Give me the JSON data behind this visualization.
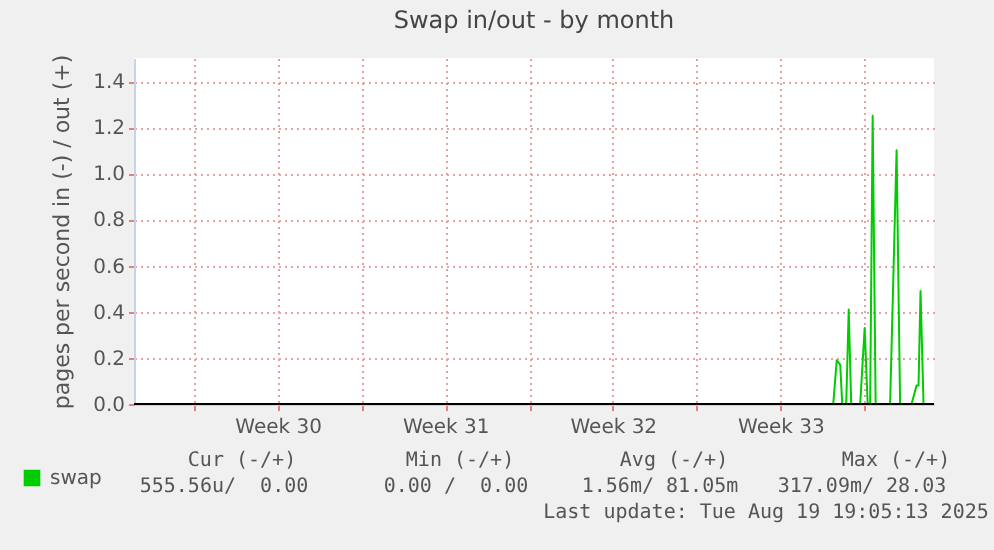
{
  "chart_data": {
    "type": "line",
    "title": "Swap in/out - by month",
    "ylabel": "pages per second in (-) / out (+)",
    "xlim": [
      "2025-07-18T12:00",
      "2025-08-20T22:00"
    ],
    "xticks": [
      {
        "value": "2025-07-21T00:00",
        "label": null
      },
      {
        "value": "2025-07-24T12:00",
        "label": "Week 30"
      },
      {
        "value": "2025-07-28T00:00",
        "label": null
      },
      {
        "value": "2025-07-31T12:00",
        "label": "Week 31"
      },
      {
        "value": "2025-08-04T00:00",
        "label": null
      },
      {
        "value": "2025-08-07T12:00",
        "label": "Week 32"
      },
      {
        "value": "2025-08-11T00:00",
        "label": null
      },
      {
        "value": "2025-08-14T12:00",
        "label": "Week 33"
      },
      {
        "value": "2025-08-18T00:00",
        "label": null
      }
    ],
    "ylim": [
      0,
      1.5
    ],
    "yticks": [
      {
        "value": 0,
        "label": "0.0"
      },
      {
        "value": 0.2,
        "label": "0.2"
      },
      {
        "value": 0.4,
        "label": "0.4"
      },
      {
        "value": 0.6,
        "label": "0.6"
      },
      {
        "value": 0.8,
        "label": "0.8"
      },
      {
        "value": 1,
        "label": "1.0"
      },
      {
        "value": 1.2,
        "label": "1.2"
      },
      {
        "value": 1.4,
        "label": "1.4"
      }
    ],
    "grid": true,
    "legend": "bottom left",
    "x": [
      "2025-08-16T17:00",
      "2025-08-16T20:30",
      "2025-08-17T00:00",
      "2025-08-17T02:00",
      "2025-08-17T06:00",
      "2025-08-17T08:30",
      "2025-08-17T11:00",
      "2025-08-17T20:00",
      "2025-08-18T00:30",
      "2025-08-18T03:30",
      "2025-08-18T06:00",
      "2025-08-18T08:30",
      "2025-08-18T11:30",
      "2025-08-19T02:00",
      "2025-08-19T08:30",
      "2025-08-19T12:00",
      "2025-08-19T23:30",
      "2025-08-20T04:30",
      "2025-08-20T06:30",
      "2025-08-20T08:30",
      "2025-08-20T11:30"
    ],
    "series": [
      {
        "name": "swap",
        "color": "#00cc00",
        "values": [
          0,
          0.19,
          0.17,
          0,
          0,
          0.41,
          0,
          0,
          0.33,
          0,
          0,
          1.25,
          0,
          0,
          1.1,
          0,
          0,
          0.08,
          0.08,
          0.49,
          0
        ]
      }
    ],
    "ref_lines": [
      {
        "axis": "y",
        "value": 0,
        "color": "#000000"
      }
    ],
    "annotations": [
      "Cur (-/+)",
      "Min (-/+)",
      "Avg (-/+)",
      "Max (-/+)",
      "555.56u/  0.00",
      "0.00 /  0.00",
      "1.56m/ 81.05m",
      "317.09m/ 28.03",
      "Last update: Tue Aug 19 19:05:13 2025"
    ]
  }
}
